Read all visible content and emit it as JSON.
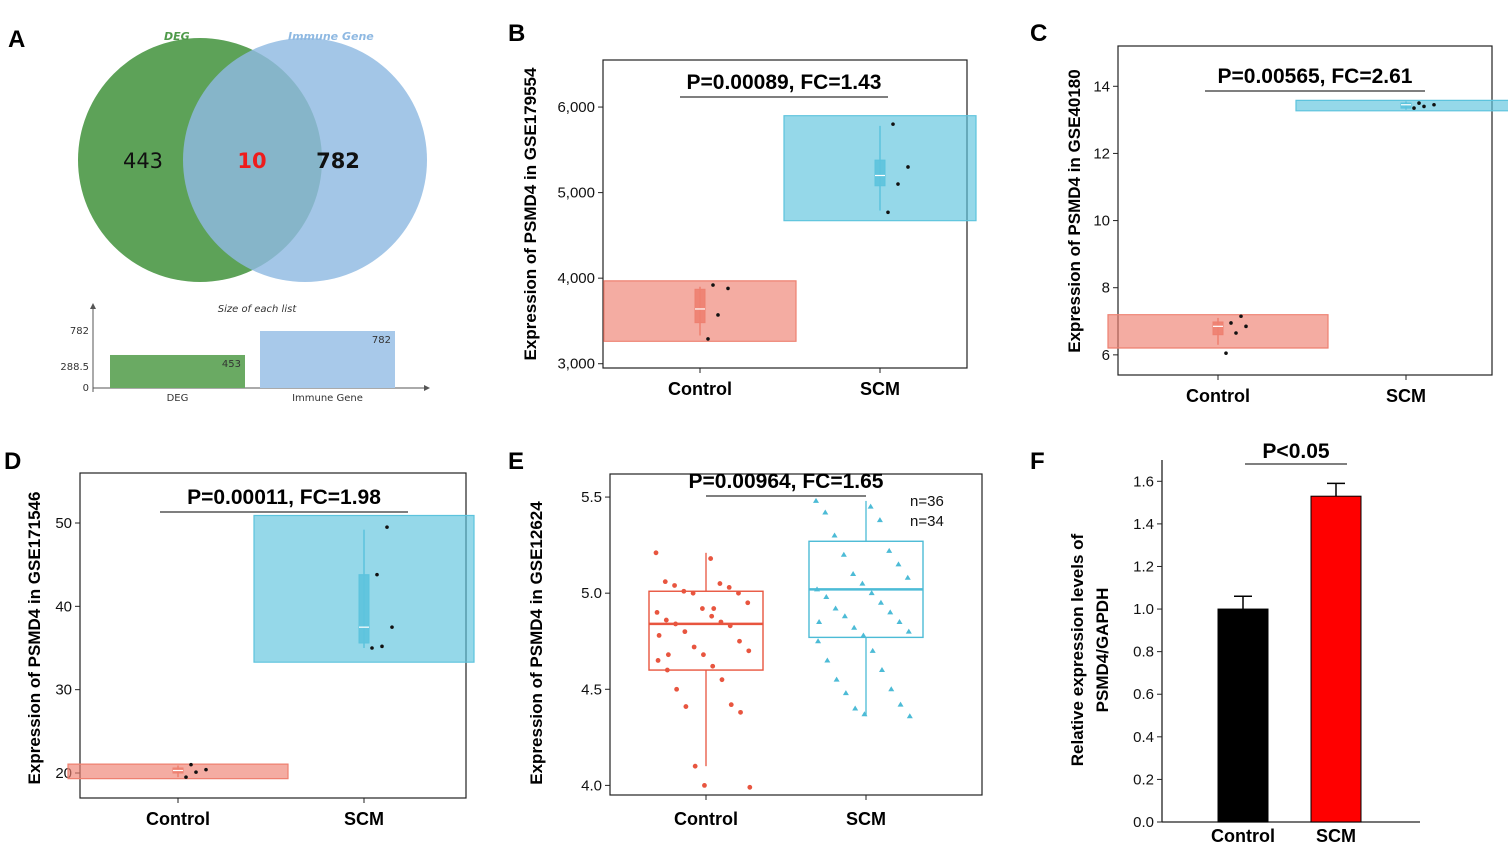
{
  "chart_data": [
    {
      "panel": "A",
      "type": "venn",
      "sets": [
        {
          "name": "DEG",
          "only": 443,
          "color": "#4f9a4a"
        },
        {
          "name": "Immune Gene",
          "only": 782,
          "color": "#8fb9e2"
        }
      ],
      "intersection": 10,
      "intersection_color": "#ee1c1c",
      "bar_inset": {
        "type": "bar",
        "title": "Size of each list",
        "categories": [
          "DEG",
          "Immune Gene"
        ],
        "values": [
          453,
          782
        ],
        "value_labels": [
          "453",
          "782"
        ],
        "yticks": [
          "782",
          "288.5",
          "0"
        ],
        "ylim": [
          0,
          782
        ],
        "colors": [
          "#6aaa63",
          "#a8c9ea"
        ]
      }
    },
    {
      "panel": "B",
      "type": "violin",
      "title": "P=0.00089, FC=1.43",
      "ylabel": "Expression of PSMD4 in GSE179554",
      "ylim": [
        2950,
        6550
      ],
      "yticks": [
        3000,
        4000,
        5000,
        6000
      ],
      "ytick_labels": [
        "3,000",
        "4,000",
        "5,000",
        "6,000"
      ],
      "categories": [
        "Control",
        "SCM"
      ],
      "series": [
        {
          "name": "Control",
          "color": "#ee8070",
          "median": 3640,
          "q1": 3480,
          "q3": 3870,
          "whisker_low": 3330,
          "whisker_high": 3900,
          "points": [
            3290,
            3570,
            3880,
            3920
          ]
        },
        {
          "name": "SCM",
          "color": "#5cc3dd",
          "median": 5200,
          "q1": 5080,
          "q3": 5380,
          "whisker_low": 4790,
          "whisker_high": 5780,
          "points": [
            4770,
            5100,
            5300,
            5800
          ]
        }
      ]
    },
    {
      "panel": "C",
      "type": "violin",
      "title": "P=0.00565, FC=2.61",
      "ylabel": "Expression of PSMD4 in GSE40180",
      "ylim": [
        5.4,
        15.2
      ],
      "yticks": [
        6,
        8,
        10,
        12,
        14
      ],
      "ytick_labels": [
        "6",
        "8",
        "10",
        "12",
        "14"
      ],
      "categories": [
        "Control",
        "SCM"
      ],
      "series": [
        {
          "name": "Control",
          "color": "#ee8070",
          "median": 6.85,
          "q1": 6.6,
          "q3": 6.98,
          "whisker_low": 6.3,
          "whisker_high": 7.1,
          "points": [
            6.05,
            6.65,
            6.85,
            6.95,
            7.15
          ]
        },
        {
          "name": "SCM",
          "color": "#5cc3dd",
          "median": 13.45,
          "q1": 13.35,
          "q3": 13.5,
          "whisker_low": 13.3,
          "whisker_high": 13.55,
          "points": [
            13.35,
            13.4,
            13.45,
            13.5
          ]
        }
      ]
    },
    {
      "panel": "D",
      "type": "violin",
      "title": "P=0.00011, FC=1.98",
      "ylabel": "Expression of PSMD4 in GSE171546",
      "ylim": [
        17,
        56
      ],
      "yticks": [
        20,
        30,
        40,
        50
      ],
      "ytick_labels": [
        "20",
        "30",
        "40",
        "50"
      ],
      "categories": [
        "Control",
        "SCM"
      ],
      "series": [
        {
          "name": "Control",
          "color": "#ee8070",
          "median": 20.3,
          "q1": 20.0,
          "q3": 20.6,
          "whisker_low": 19.5,
          "whisker_high": 20.9,
          "points": [
            19.5,
            20.1,
            20.4,
            21.0
          ]
        },
        {
          "name": "SCM",
          "color": "#5cc3dd",
          "median": 37.5,
          "q1": 35.6,
          "q3": 43.8,
          "whisker_low": 35.0,
          "whisker_high": 49.2,
          "points": [
            35.0,
            35.2,
            37.5,
            43.8,
            49.5
          ]
        }
      ]
    },
    {
      "panel": "E",
      "type": "boxplot",
      "title": "P=0.00964, FC=1.65",
      "ylabel": "Expression of PSMD4 in GSE12624",
      "ylim": [
        3.95,
        5.62
      ],
      "yticks": [
        4.0,
        4.5,
        5.0,
        5.5
      ],
      "ytick_labels": [
        "4.0",
        "4.5",
        "5.0",
        "5.5"
      ],
      "categories": [
        "Control",
        "SCM"
      ],
      "legend": [
        "n=36",
        "n=34"
      ],
      "series": [
        {
          "name": "Control",
          "n": 36,
          "color": "#e8553f",
          "median": 4.84,
          "q1": 4.6,
          "q3": 5.01,
          "whisker_low": 4.1,
          "whisker_high": 5.21,
          "points": [
            5.21,
            5.18,
            5.06,
            5.05,
            5.04,
            5.03,
            5.01,
            5.0,
            5.0,
            4.95,
            4.92,
            4.9,
            4.88,
            4.86,
            4.85,
            4.84,
            4.83,
            4.8,
            4.75,
            4.72,
            4.7,
            4.68,
            4.65,
            4.62,
            4.6,
            4.55,
            4.5,
            4.42,
            4.41,
            4.38,
            4.1,
            3.99,
            4.0,
            4.78,
            4.92,
            4.68
          ]
        },
        {
          "name": "SCM",
          "n": 34,
          "color": "#4cbbd6",
          "median": 5.02,
          "q1": 4.77,
          "q3": 5.27,
          "whisker_low": 4.36,
          "whisker_high": 5.48,
          "points": [
            5.48,
            5.45,
            5.42,
            5.38,
            5.3,
            5.22,
            5.2,
            5.15,
            5.1,
            5.08,
            5.05,
            5.02,
            5.0,
            4.98,
            4.95,
            4.92,
            4.9,
            4.88,
            4.85,
            4.82,
            4.8,
            4.78,
            4.75,
            4.7,
            4.65,
            4.6,
            4.55,
            4.5,
            4.48,
            4.42,
            4.4,
            4.36,
            4.37,
            4.85
          ]
        }
      ]
    },
    {
      "panel": "F",
      "type": "bar",
      "title": "P<0.05",
      "ylabel": "Relative expression levels of PSMD4/GAPDH",
      "ylabel_lines": [
        "Relative expression levels of",
        "PSMD4/GAPDH"
      ],
      "ylim": [
        0,
        1.7
      ],
      "yticks": [
        0.0,
        0.2,
        0.4,
        0.6,
        0.8,
        1.0,
        1.2,
        1.4,
        1.6
      ],
      "ytick_labels": [
        "0.0",
        "0.2",
        "0.4",
        "0.6",
        "0.8",
        "1.0",
        "1.2",
        "1.4",
        "1.6"
      ],
      "categories": [
        "Control",
        "SCM"
      ],
      "values": [
        1.0,
        1.53
      ],
      "errors": [
        0.06,
        0.06
      ],
      "colors": [
        "#000000",
        "#ff0000"
      ]
    }
  ],
  "panel_labels": [
    "A",
    "B",
    "C",
    "D",
    "E",
    "F"
  ]
}
